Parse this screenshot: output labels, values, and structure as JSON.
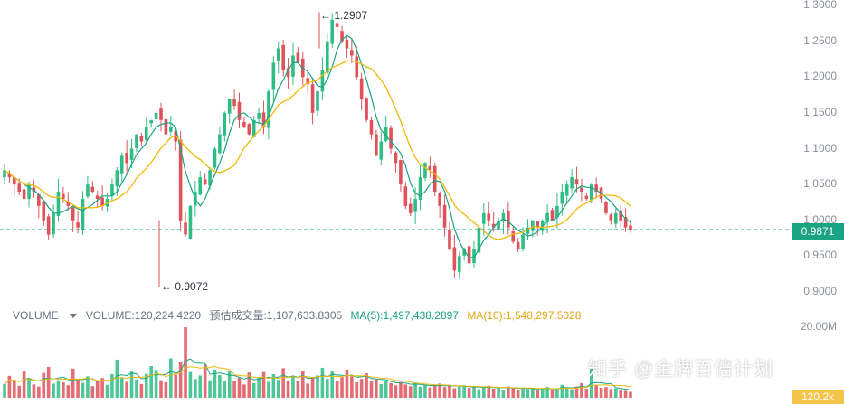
{
  "chart_data": {
    "type": "candlestick",
    "price_axis": {
      "ticks": [
        "1.3000",
        "1.2500",
        "1.2000",
        "1.1500",
        "1.1000",
        "1.0500",
        "1.0000",
        "0.9500",
        "0.9000"
      ],
      "ylim": [
        0.9,
        1.3
      ]
    },
    "current_price": "0.9871",
    "annotations": {
      "high": "← 1.2907",
      "low": "← 0.9072"
    },
    "close_series": [
      1.07,
      1.06,
      1.05,
      1.04,
      1.03,
      1.05,
      1.04,
      1.02,
      1.0,
      0.98,
      1.01,
      1.04,
      1.03,
      1.02,
      1.0,
      0.99,
      1.03,
      1.05,
      1.04,
      1.03,
      1.02,
      1.03,
      1.05,
      1.07,
      1.09,
      1.08,
      1.1,
      1.12,
      1.11,
      1.13,
      1.14,
      1.15,
      1.14,
      1.12,
      1.13,
      1.11,
      1.0,
      0.98,
      1.02,
      1.04,
      1.06,
      1.05,
      1.07,
      1.1,
      1.12,
      1.15,
      1.17,
      1.16,
      1.14,
      1.13,
      1.12,
      1.14,
      1.15,
      1.13,
      1.18,
      1.22,
      1.24,
      1.21,
      1.2,
      1.23,
      1.22,
      1.2,
      1.19,
      1.15,
      1.18,
      1.21,
      1.25,
      1.28,
      1.27,
      1.25,
      1.24,
      1.23,
      1.2,
      1.17,
      1.14,
      1.12,
      1.09,
      1.11,
      1.13,
      1.1,
      1.08,
      1.05,
      1.02,
      1.01,
      1.03,
      1.06,
      1.08,
      1.07,
      1.04,
      1.02,
      0.99,
      0.96,
      0.93,
      0.95,
      0.96,
      0.94,
      0.96,
      0.99,
      1.01,
      1.0,
      0.99,
      1.0,
      1.01,
      0.99,
      0.97,
      0.96,
      0.98,
      0.99,
      1.0,
      0.99,
      1.0,
      1.01,
      1.0,
      1.02,
      1.04,
      1.05,
      1.06,
      1.05,
      1.04,
      1.03,
      1.05,
      1.04,
      1.03,
      1.01,
      1.0,
      1.01,
      1.0,
      0.99,
      0.9871
    ],
    "series": [
      {
        "name": "MA(5)",
        "color": "#1aa482"
      },
      {
        "name": "MA(10)",
        "color": "#f0b90b"
      }
    ],
    "volume_axis": {
      "ticks": [
        "20.00M"
      ]
    },
    "volume_tag": "120.2k",
    "volume_values_m": [
      3.2,
      5.1,
      4.0,
      2.8,
      6.3,
      4.4,
      3.1,
      2.6,
      5.8,
      7.2,
      3.3,
      4.1,
      3.6,
      2.9,
      6.8,
      4.2,
      3.5,
      5.0,
      2.7,
      3.9,
      4.6,
      3.0,
      5.5,
      8.9,
      4.8,
      3.7,
      6.1,
      4.3,
      3.2,
      5.6,
      7.4,
      6.5,
      4.1,
      3.6,
      9.2,
      5.4,
      8.3,
      16.5,
      6.0,
      4.4,
      5.2,
      7.8,
      4.1,
      6.6,
      5.3,
      4.0,
      6.2,
      3.8,
      4.7,
      3.1,
      5.9,
      3.4,
      4.8,
      6.0,
      3.7,
      5.5,
      4.2,
      6.9,
      3.8,
      5.1,
      4.0,
      6.3,
      3.3,
      4.6,
      5.2,
      7.0,
      4.4,
      6.1,
      3.9,
      4.8,
      6.6,
      5.0,
      3.6,
      4.4,
      5.7,
      3.9,
      4.3,
      3.2,
      4.0,
      3.4,
      2.9,
      3.7,
      3.1,
      2.7,
      3.5,
      2.6,
      3.0,
      2.4,
      2.8,
      3.3,
      2.5,
      3.0,
      2.2,
      2.6,
      2.9,
      2.3,
      2.7,
      2.0,
      2.4,
      2.8,
      2.1,
      2.5,
      1.9,
      2.6,
      2.2,
      1.8,
      2.4,
      2.0,
      2.3,
      1.7,
      2.1,
      2.5,
      1.9,
      2.2,
      3.0,
      2.4,
      2.0,
      2.6,
      3.4,
      2.1,
      6.8,
      2.9,
      2.3,
      2.5,
      2.0,
      2.2,
      1.8,
      1.6,
      1.4
    ]
  },
  "legend": {
    "volume_label": "VOLUME",
    "volume_value": "VOLUME:120,224.4220",
    "estimated": "预估成交量:1,107,633.8305",
    "ma5": "MA(5):1,497,438.2897",
    "ma10": "MA(10):1,548,297.5028"
  },
  "watermark": "知乎 @金牌百倍计划",
  "colors": {
    "up": "#2ebd85",
    "down": "#e0525a",
    "ma5": "#1aa482",
    "ma10": "#f0b90b",
    "price_line": "#1aa482",
    "vol_tag": "#f3c34a"
  }
}
